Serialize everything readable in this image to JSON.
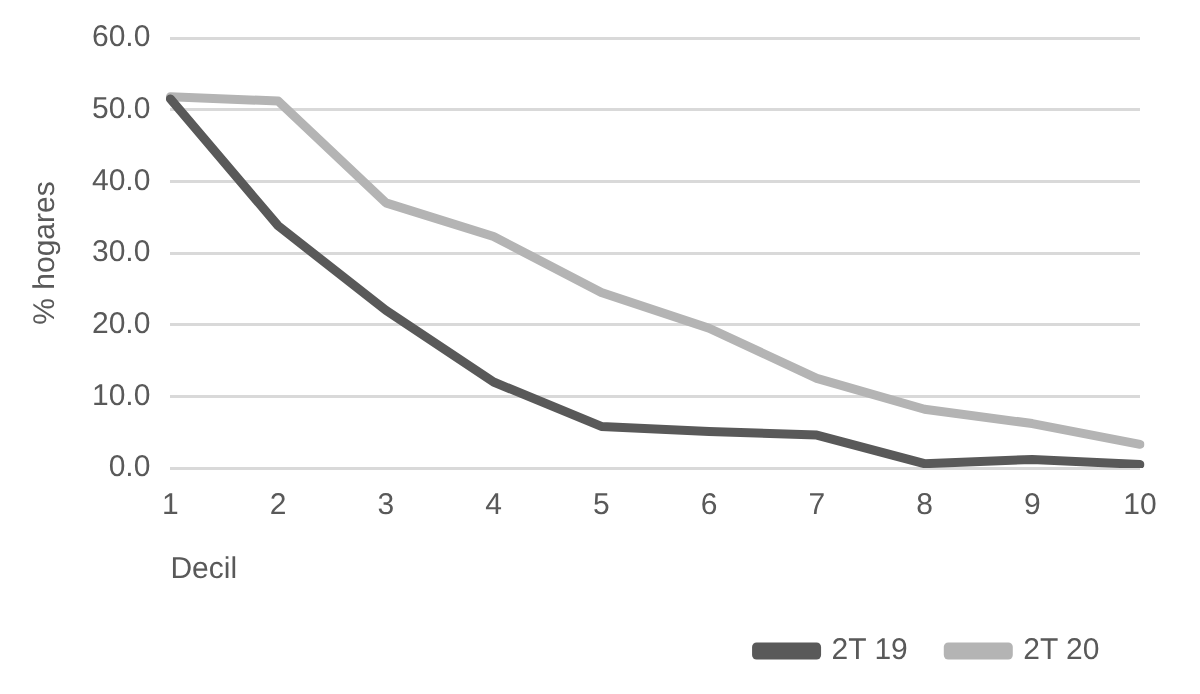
{
  "chart_data": {
    "type": "line",
    "xlabel": "Decil",
    "ylabel": "% hogares",
    "categories": [
      "1",
      "2",
      "3",
      "4",
      "5",
      "6",
      "7",
      "8",
      "9",
      "10"
    ],
    "series": [
      {
        "name": "2T 19",
        "color": "#595959",
        "values": [
          51.5,
          33.8,
          22,
          12,
          5.8,
          5.1,
          4.6,
          0.6,
          1.2,
          0.5
        ]
      },
      {
        "name": "2T 20",
        "color": "#b4b4b4",
        "values": [
          51.8,
          51.2,
          37,
          32.3,
          24.5,
          19.5,
          12.5,
          8.2,
          6.2,
          3.3
        ]
      }
    ],
    "ylim": [
      0,
      60
    ],
    "yticks": [
      {
        "value": 0,
        "label": "0.0"
      },
      {
        "value": 10,
        "label": "10.0"
      },
      {
        "value": 20,
        "label": "20.0"
      },
      {
        "value": 30,
        "label": "30.0"
      },
      {
        "value": 40,
        "label": "40.0"
      },
      {
        "value": 50,
        "label": "50.0"
      },
      {
        "value": 60,
        "label": "60.0"
      }
    ],
    "grid": "y",
    "legend": "bottom right",
    "marker": "none",
    "line_style": "solid"
  }
}
